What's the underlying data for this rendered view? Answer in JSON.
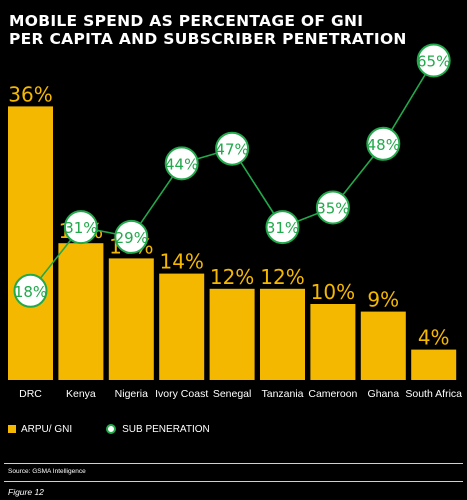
{
  "title_lines": [
    "MOBILE SPEND AS PERCENTAGE OF GNI",
    "PER CAPITA AND SUBSCRIBER PENETRATION"
  ],
  "colors": {
    "bar": "#f5b800",
    "line": "#22a94b",
    "marker_fill": "#ffffff",
    "marker_text": "#22a94b",
    "background": "#000000"
  },
  "chart_data": {
    "type": "bar",
    "categories": [
      "DRC",
      "Kenya",
      "Nigeria",
      "Ivory Coast",
      "Senegal",
      "Tanzania",
      "Cameroon",
      "Ghana",
      "South Africa"
    ],
    "series": [
      {
        "name": "ARPU/ GNI",
        "type": "bar",
        "values": [
          36,
          18,
          16,
          14,
          12,
          12,
          10,
          9,
          4
        ],
        "labels": [
          "36%",
          "18%",
          "16%",
          "14%",
          "12%",
          "12%",
          "10%",
          "9%",
          "4%"
        ]
      },
      {
        "name": "SUB PENERATION",
        "type": "line",
        "values": [
          18,
          31,
          29,
          44,
          47,
          31,
          35,
          48,
          65
        ],
        "labels": [
          "18%",
          "31%",
          "29%",
          "44%",
          "47%",
          "31%",
          "35%",
          "48%",
          "65%"
        ]
      }
    ],
    "legend_position": "bottom-left",
    "grid": false
  },
  "legend": {
    "bar_label": "ARPU/ GNI",
    "line_label": "SUB PENERATION"
  },
  "source": "Source: GSMA Intelligence",
  "figure_label": "Figure 12"
}
